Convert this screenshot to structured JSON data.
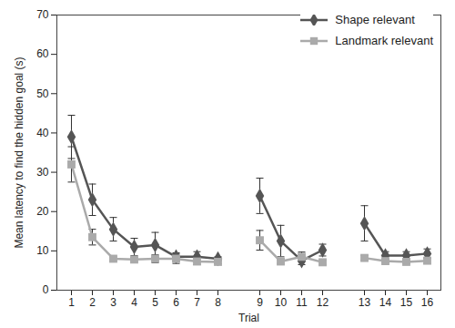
{
  "chart_data": {
    "type": "line",
    "x_label": "Trial",
    "y_label": "Mean latency to find the hidden goal (s)",
    "categories": [
      "1",
      "2",
      "3",
      "4",
      "5",
      "6",
      "7",
      "8",
      null,
      "9",
      "10",
      "11",
      "12",
      null,
      "13",
      "14",
      "15",
      "16"
    ],
    "series": [
      {
        "name": "Shape relevant",
        "color": "#555555",
        "marker": "diamond",
        "values": [
          39,
          23,
          15.5,
          11,
          11.5,
          8.5,
          8.5,
          8,
          null,
          24,
          12.5,
          7.5,
          10.2,
          null,
          17,
          8.8,
          8.8,
          9.3
        ],
        "errors": [
          5.5,
          4,
          3,
          2.2,
          3.2,
          1,
          1.3,
          0.5,
          null,
          4.5,
          4,
          1,
          1.5,
          null,
          4.5,
          1,
          1,
          1.2
        ]
      },
      {
        "name": "Landmark relevant",
        "color": "#aaaaaa",
        "marker": "square",
        "values": [
          32,
          13.5,
          8,
          7.8,
          8,
          8,
          7.3,
          7.2,
          null,
          12.7,
          7.3,
          8.5,
          7.1,
          null,
          8.2,
          7.4,
          7.2,
          7.5
        ],
        "errors": [
          4.5,
          2,
          0.5,
          0.5,
          1,
          1.2,
          0.8,
          0.5,
          null,
          2.5,
          0.5,
          1.2,
          0.5,
          null,
          0.6,
          0.4,
          0.5,
          0.7
        ]
      }
    ],
    "ylim": [
      0,
      70
    ],
    "yticks": [
      0,
      10,
      20,
      30,
      40,
      50,
      60,
      70
    ],
    "legend": "top-right"
  }
}
